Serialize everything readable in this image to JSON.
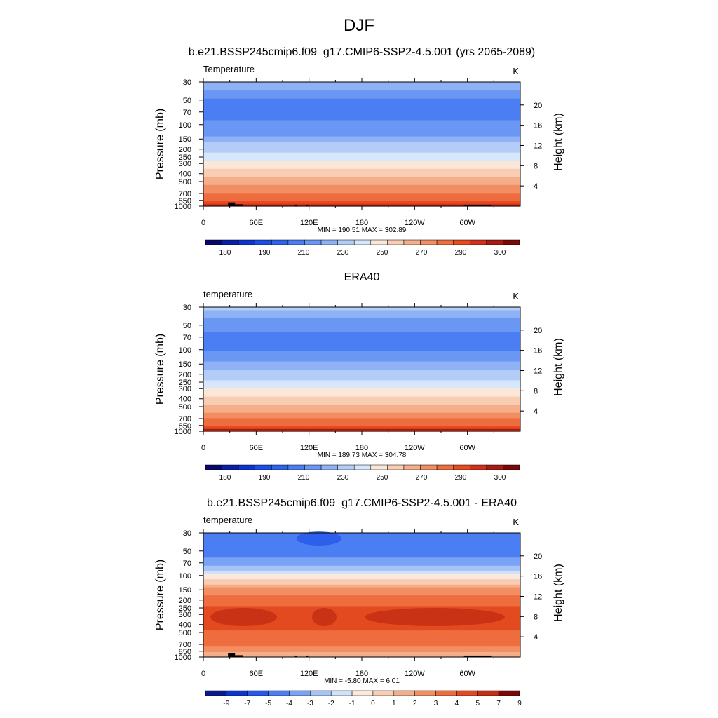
{
  "figure": {
    "title": "DJF"
  },
  "chart_data": [
    {
      "type": "heatmap",
      "title": "b.e21.BSSP245cmip6.f09_g17.CMIP6-SSP2-4.5.001 (yrs 2065-2089)",
      "left_label": "Temperature",
      "units": "K",
      "ylabel": "Pressure (mb)",
      "ylabel_right": "Height (km)",
      "x_ticks": [
        "0",
        "60E",
        "120E",
        "180",
        "120W",
        "60W"
      ],
      "x_tick_values": [
        0,
        60,
        120,
        180,
        240,
        300
      ],
      "xlim": [
        0,
        360
      ],
      "y_ticks": [
        "30",
        "50",
        "70",
        "100",
        "150",
        "200",
        "250",
        "300",
        "400",
        "500",
        "700",
        "850",
        "1000"
      ],
      "y_tick_values": [
        30,
        50,
        70,
        100,
        150,
        200,
        250,
        300,
        400,
        500,
        700,
        850,
        1000
      ],
      "ylim": [
        1000,
        30
      ],
      "y_scale": "log",
      "right_ticks": [
        "20",
        "16",
        "12",
        "8",
        "4"
      ],
      "right_tick_values": [
        20,
        16,
        12,
        8,
        4
      ],
      "stats": "MIN = 190.51  MAX = 302.89",
      "colorbar_labels": [
        "180",
        "190",
        "210",
        "230",
        "250",
        "270",
        "290",
        "300"
      ],
      "profile": {
        "pressure": [
          30,
          50,
          70,
          100,
          150,
          200,
          250,
          300,
          400,
          500,
          700,
          850,
          1000
        ],
        "value": [
          209,
          199,
          199,
          201,
          207,
          216,
          226,
          234,
          247,
          257,
          271,
          281,
          292
        ]
      },
      "topography": true
    },
    {
      "type": "heatmap",
      "title": "ERA40",
      "left_label": "temperature",
      "units": "K",
      "ylabel": "Pressure (mb)",
      "ylabel_right": "Height (km)",
      "x_ticks": [
        "0",
        "60E",
        "120E",
        "180",
        "120W",
        "60W"
      ],
      "x_tick_values": [
        0,
        60,
        120,
        180,
        240,
        300
      ],
      "xlim": [
        0,
        360
      ],
      "y_ticks": [
        "30",
        "50",
        "70",
        "100",
        "150",
        "200",
        "250",
        "300",
        "400",
        "500",
        "700",
        "850",
        "1000"
      ],
      "y_tick_values": [
        30,
        50,
        70,
        100,
        150,
        200,
        250,
        300,
        400,
        500,
        700,
        850,
        1000
      ],
      "ylim": [
        1000,
        30
      ],
      "y_scale": "log",
      "right_ticks": [
        "20",
        "16",
        "12",
        "8",
        "4"
      ],
      "right_tick_values": [
        20,
        16,
        12,
        8,
        4
      ],
      "stats": "MIN = 189.73  MAX = 304.78",
      "colorbar_labels": [
        "180",
        "190",
        "210",
        "230",
        "250",
        "270",
        "290",
        "300"
      ],
      "profile": {
        "pressure": [
          30,
          50,
          70,
          100,
          150,
          200,
          250,
          300,
          400,
          500,
          700,
          850,
          1000
        ],
        "value": [
          211,
          201,
          199,
          200,
          207,
          215,
          224,
          232,
          245,
          255,
          270,
          281,
          293
        ]
      },
      "topography": false
    },
    {
      "type": "heatmap",
      "title": "b.e21.BSSP245cmip6.f09_g17.CMIP6-SSP2-4.5.001 - ERA40",
      "left_label": "temperature",
      "units": "K",
      "ylabel": "Pressure (mb)",
      "ylabel_right": "Height (km)",
      "x_ticks": [
        "0",
        "60E",
        "120E",
        "180",
        "120W",
        "60W"
      ],
      "x_tick_values": [
        0,
        60,
        120,
        180,
        240,
        300
      ],
      "xlim": [
        0,
        360
      ],
      "y_ticks": [
        "30",
        "50",
        "70",
        "100",
        "150",
        "200",
        "250",
        "300",
        "400",
        "500",
        "700",
        "850",
        "1000"
      ],
      "y_tick_values": [
        30,
        50,
        70,
        100,
        150,
        200,
        250,
        300,
        400,
        500,
        700,
        850,
        1000
      ],
      "ylim": [
        1000,
        30
      ],
      "y_scale": "log",
      "right_ticks": [
        "20",
        "16",
        "12",
        "8",
        "4"
      ],
      "right_tick_values": [
        20,
        16,
        12,
        8,
        4
      ],
      "stats": "MIN = -5.80  MAX =  6.01",
      "colorbar_labels": [
        "-9",
        "-7",
        "-5",
        "-4",
        "-3",
        "-2",
        "-1",
        "0",
        "1",
        "2",
        "3",
        "4",
        "5",
        "7",
        "9"
      ],
      "profile": {
        "pressure": [
          30,
          50,
          70,
          100,
          150,
          200,
          250,
          300,
          400,
          500,
          700,
          850,
          1000
        ],
        "value": [
          -5,
          -4.5,
          -3.5,
          -0.5,
          2.5,
          3.5,
          4.2,
          4.8,
          4.3,
          3.8,
          3.2,
          2.2,
          0.8
        ]
      },
      "topography": true
    }
  ],
  "colors": {
    "temp_palette": [
      "#08086b",
      "#0a1fa8",
      "#0c35d0",
      "#1a4ee6",
      "#2e63ee",
      "#4a7ef2",
      "#6b97f4",
      "#8fb2f6",
      "#b3cdf8",
      "#d6e6fb",
      "#fbe7d8",
      "#f8cdb4",
      "#f5ae8a",
      "#f28e62",
      "#ee6d3e",
      "#e8491f",
      "#d2301a",
      "#a81b12",
      "#7a0808"
    ],
    "diff_palette": [
      "#0a1a8c",
      "#0c35d0",
      "#2458ea",
      "#4a7ef2",
      "#7aa3f5",
      "#a6c4f7",
      "#d0e2fa",
      "#fbe9dd",
      "#f8cdb4",
      "#f5ae8a",
      "#f28e62",
      "#ee6d3e",
      "#e34a20",
      "#c42e14",
      "#7a0808"
    ],
    "topography": "#000000"
  }
}
